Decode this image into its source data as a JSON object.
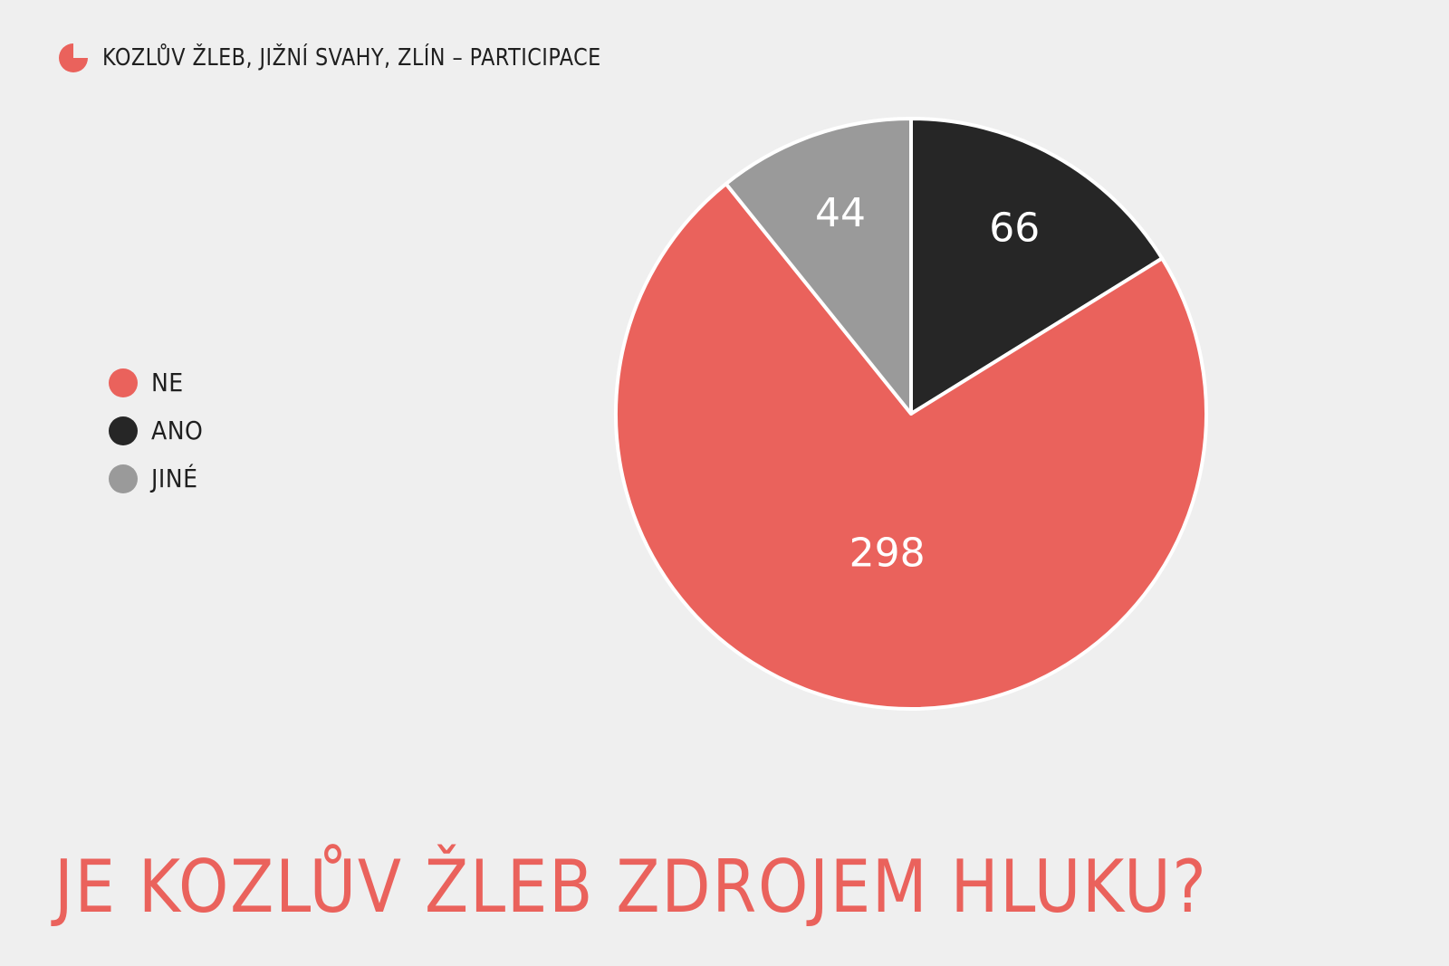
{
  "header": {
    "title": "KOZLŮV ŽLEB, JIŽNÍ SVAHY, ZLÍN – PARTICIPACE",
    "icon": "pie-chart-icon",
    "icon_color": "#ea625c"
  },
  "question": "JE KOZLŮV ŽLEB ZDROJEM HLUKU?",
  "colors": {
    "background": "#efefef",
    "accent": "#ea625c",
    "dark": "#262626",
    "grey": "#9a9a9a",
    "stroke": "#ffffff"
  },
  "legend": [
    {
      "label": "NE",
      "color": "#ea625c"
    },
    {
      "label": "ANO",
      "color": "#262626"
    },
    {
      "label": "JINÉ",
      "color": "#9a9a9a"
    }
  ],
  "chart_data": {
    "type": "pie",
    "categories": [
      "ANO",
      "NE",
      "JINÉ"
    ],
    "values": [
      66,
      298,
      44
    ],
    "colors": [
      "#262626",
      "#ea625c",
      "#9a9a9a"
    ],
    "start": "top",
    "direction": "clockwise",
    "data_labels": true,
    "legend_position": "left"
  }
}
